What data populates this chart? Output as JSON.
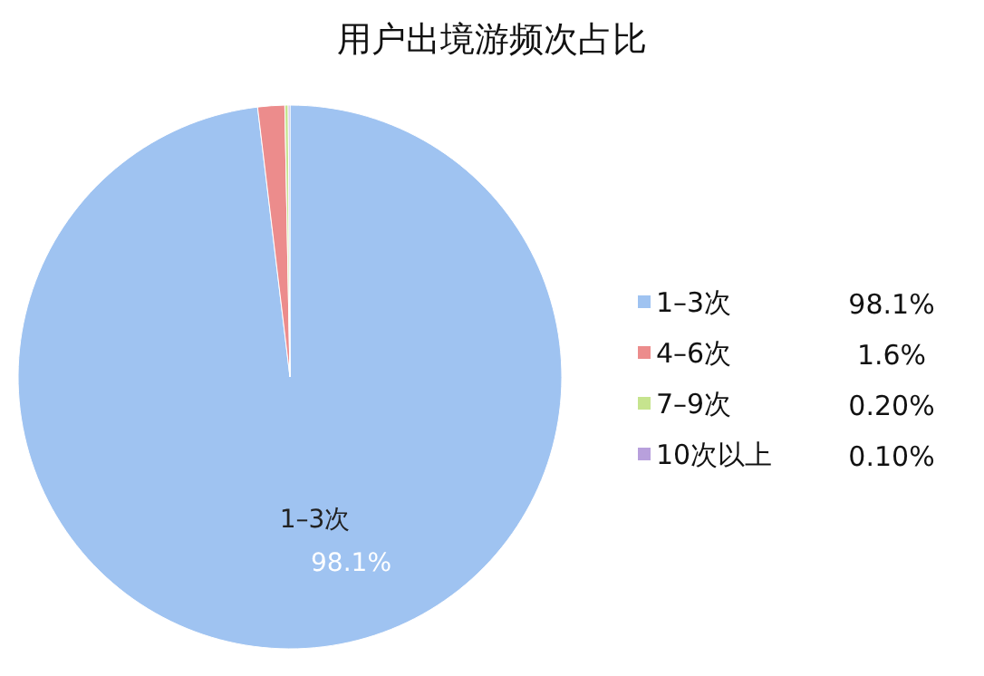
{
  "chart_data": {
    "type": "pie",
    "title": "用户出境游频次占比",
    "categories": [
      "1–3次",
      "4–6次",
      "7–9次",
      "10次以上"
    ],
    "values": [
      98.1,
      1.6,
      0.2,
      0.1
    ],
    "value_labels": [
      "98.1%",
      "1.6%",
      "0.20%",
      "0.10%"
    ],
    "colors": [
      "#9fc3f1",
      "#ec8c8c",
      "#c6e48e",
      "#b8a0dc"
    ],
    "legend": "right"
  }
}
